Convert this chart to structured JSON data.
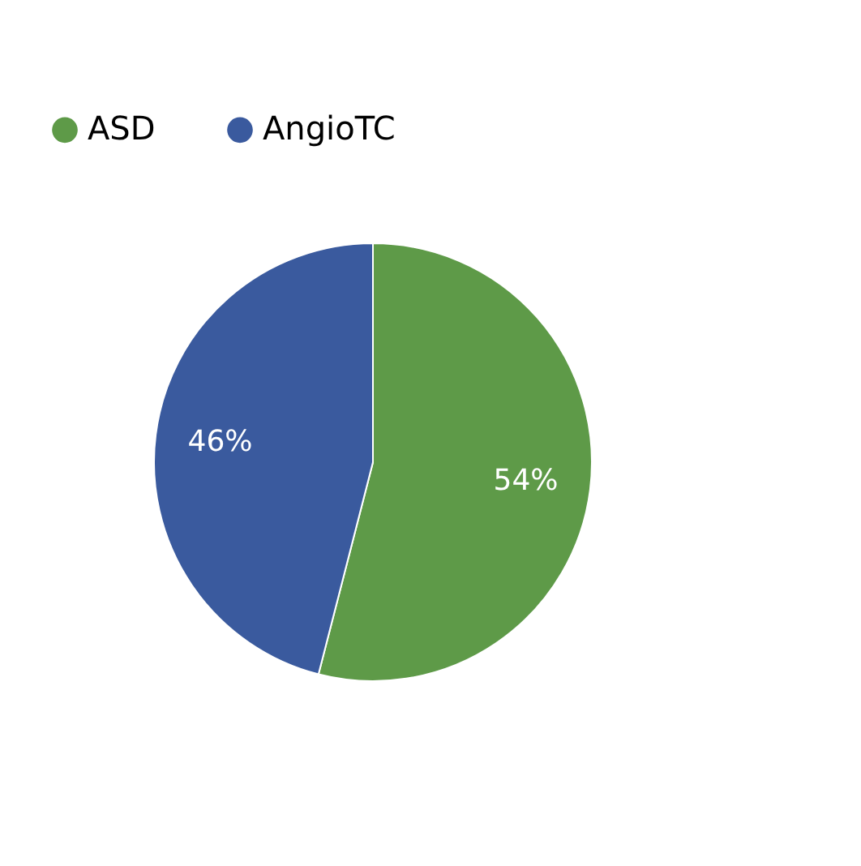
{
  "chart_data": {
    "type": "pie",
    "categories": [
      "ASD",
      "AngioTC"
    ],
    "values": [
      54,
      46
    ],
    "colors": [
      "#5e9a48",
      "#3a5a9e"
    ],
    "value_labels": [
      "54%",
      "46%"
    ],
    "legend": "top"
  }
}
